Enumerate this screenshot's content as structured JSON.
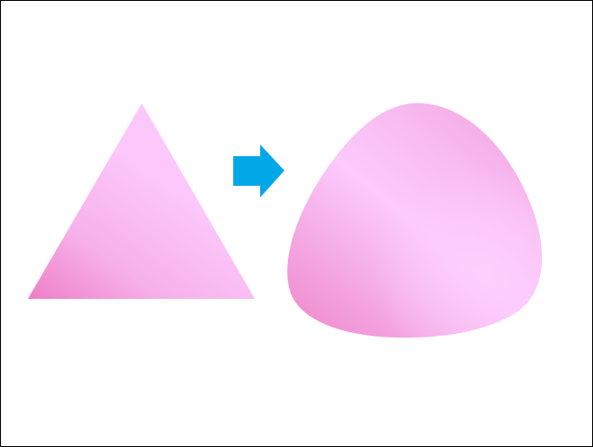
{
  "colors": {
    "background": "#ffffff",
    "border": "#000000",
    "shape_light": "#fcc8fc",
    "shape_mid": "#f6b0ea",
    "shape_dark": "#ee7ec6",
    "arrow": "#00a8e8"
  },
  "shapes": {
    "source": "triangle",
    "transition": "right-arrow-icon",
    "result": "rounded-triangle"
  }
}
